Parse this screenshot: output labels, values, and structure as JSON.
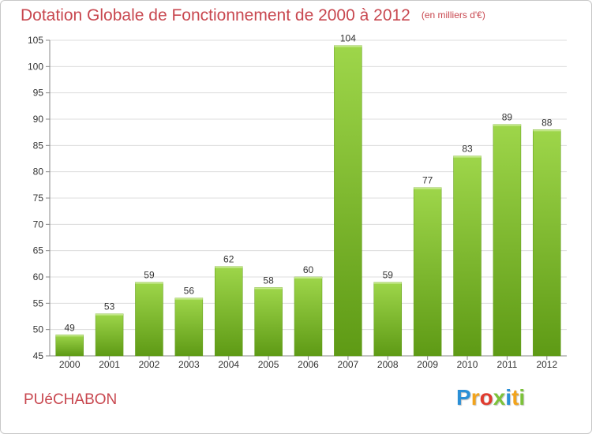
{
  "chart_data": {
    "type": "bar",
    "title": "Dotation Globale de Fonctionnement de 2000 à 2012",
    "subtitle": "(en milliers d'€)",
    "categories": [
      "2000",
      "2001",
      "2002",
      "2003",
      "2004",
      "2005",
      "2006",
      "2007",
      "2008",
      "2009",
      "2010",
      "2011",
      "2012"
    ],
    "values": [
      49,
      53,
      59,
      56,
      62,
      58,
      60,
      104,
      59,
      77,
      83,
      89,
      88
    ],
    "xlabel": "",
    "ylabel": "",
    "ylim": [
      45,
      105
    ],
    "yticks": [
      45,
      50,
      55,
      60,
      65,
      70,
      75,
      80,
      85,
      90,
      95,
      100,
      105
    ],
    "grid": true,
    "bar_color": "#7fbf2a",
    "bar_color_light": "#9ed64a",
    "bar_color_dark": "#5e9a15"
  },
  "footer": {
    "commune": "PUéCHABON",
    "logo_letters": [
      "P",
      "r",
      "o",
      "x",
      "i",
      "t",
      "i"
    ],
    "logo_colors": [
      "#2b8fd6",
      "#f2a31b",
      "#e03b2e",
      "#7cc23a",
      "#2b8fd6",
      "#f2a31b",
      "#7cc23a"
    ]
  },
  "colors": {
    "accent": "#c8474f",
    "grid": "#dcdcdc",
    "axis": "#888888"
  }
}
